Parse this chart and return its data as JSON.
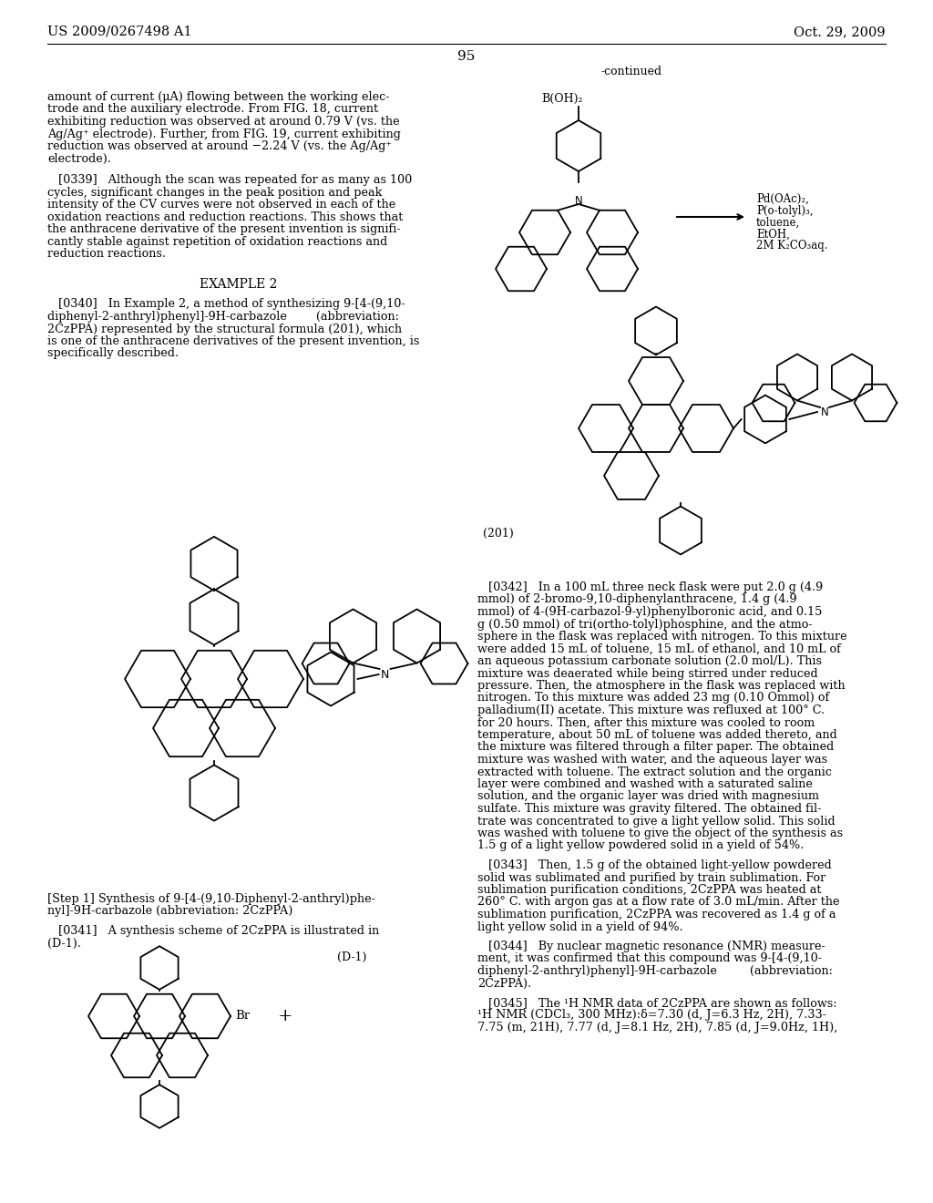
{
  "page_number": "95",
  "header_left": "US 2009/0267498 A1",
  "header_right": "Oct. 29, 2009",
  "background_color": "#ffffff",
  "text_color": "#000000",
  "figsize": [
    10.24,
    13.2
  ],
  "dpi": 100
}
